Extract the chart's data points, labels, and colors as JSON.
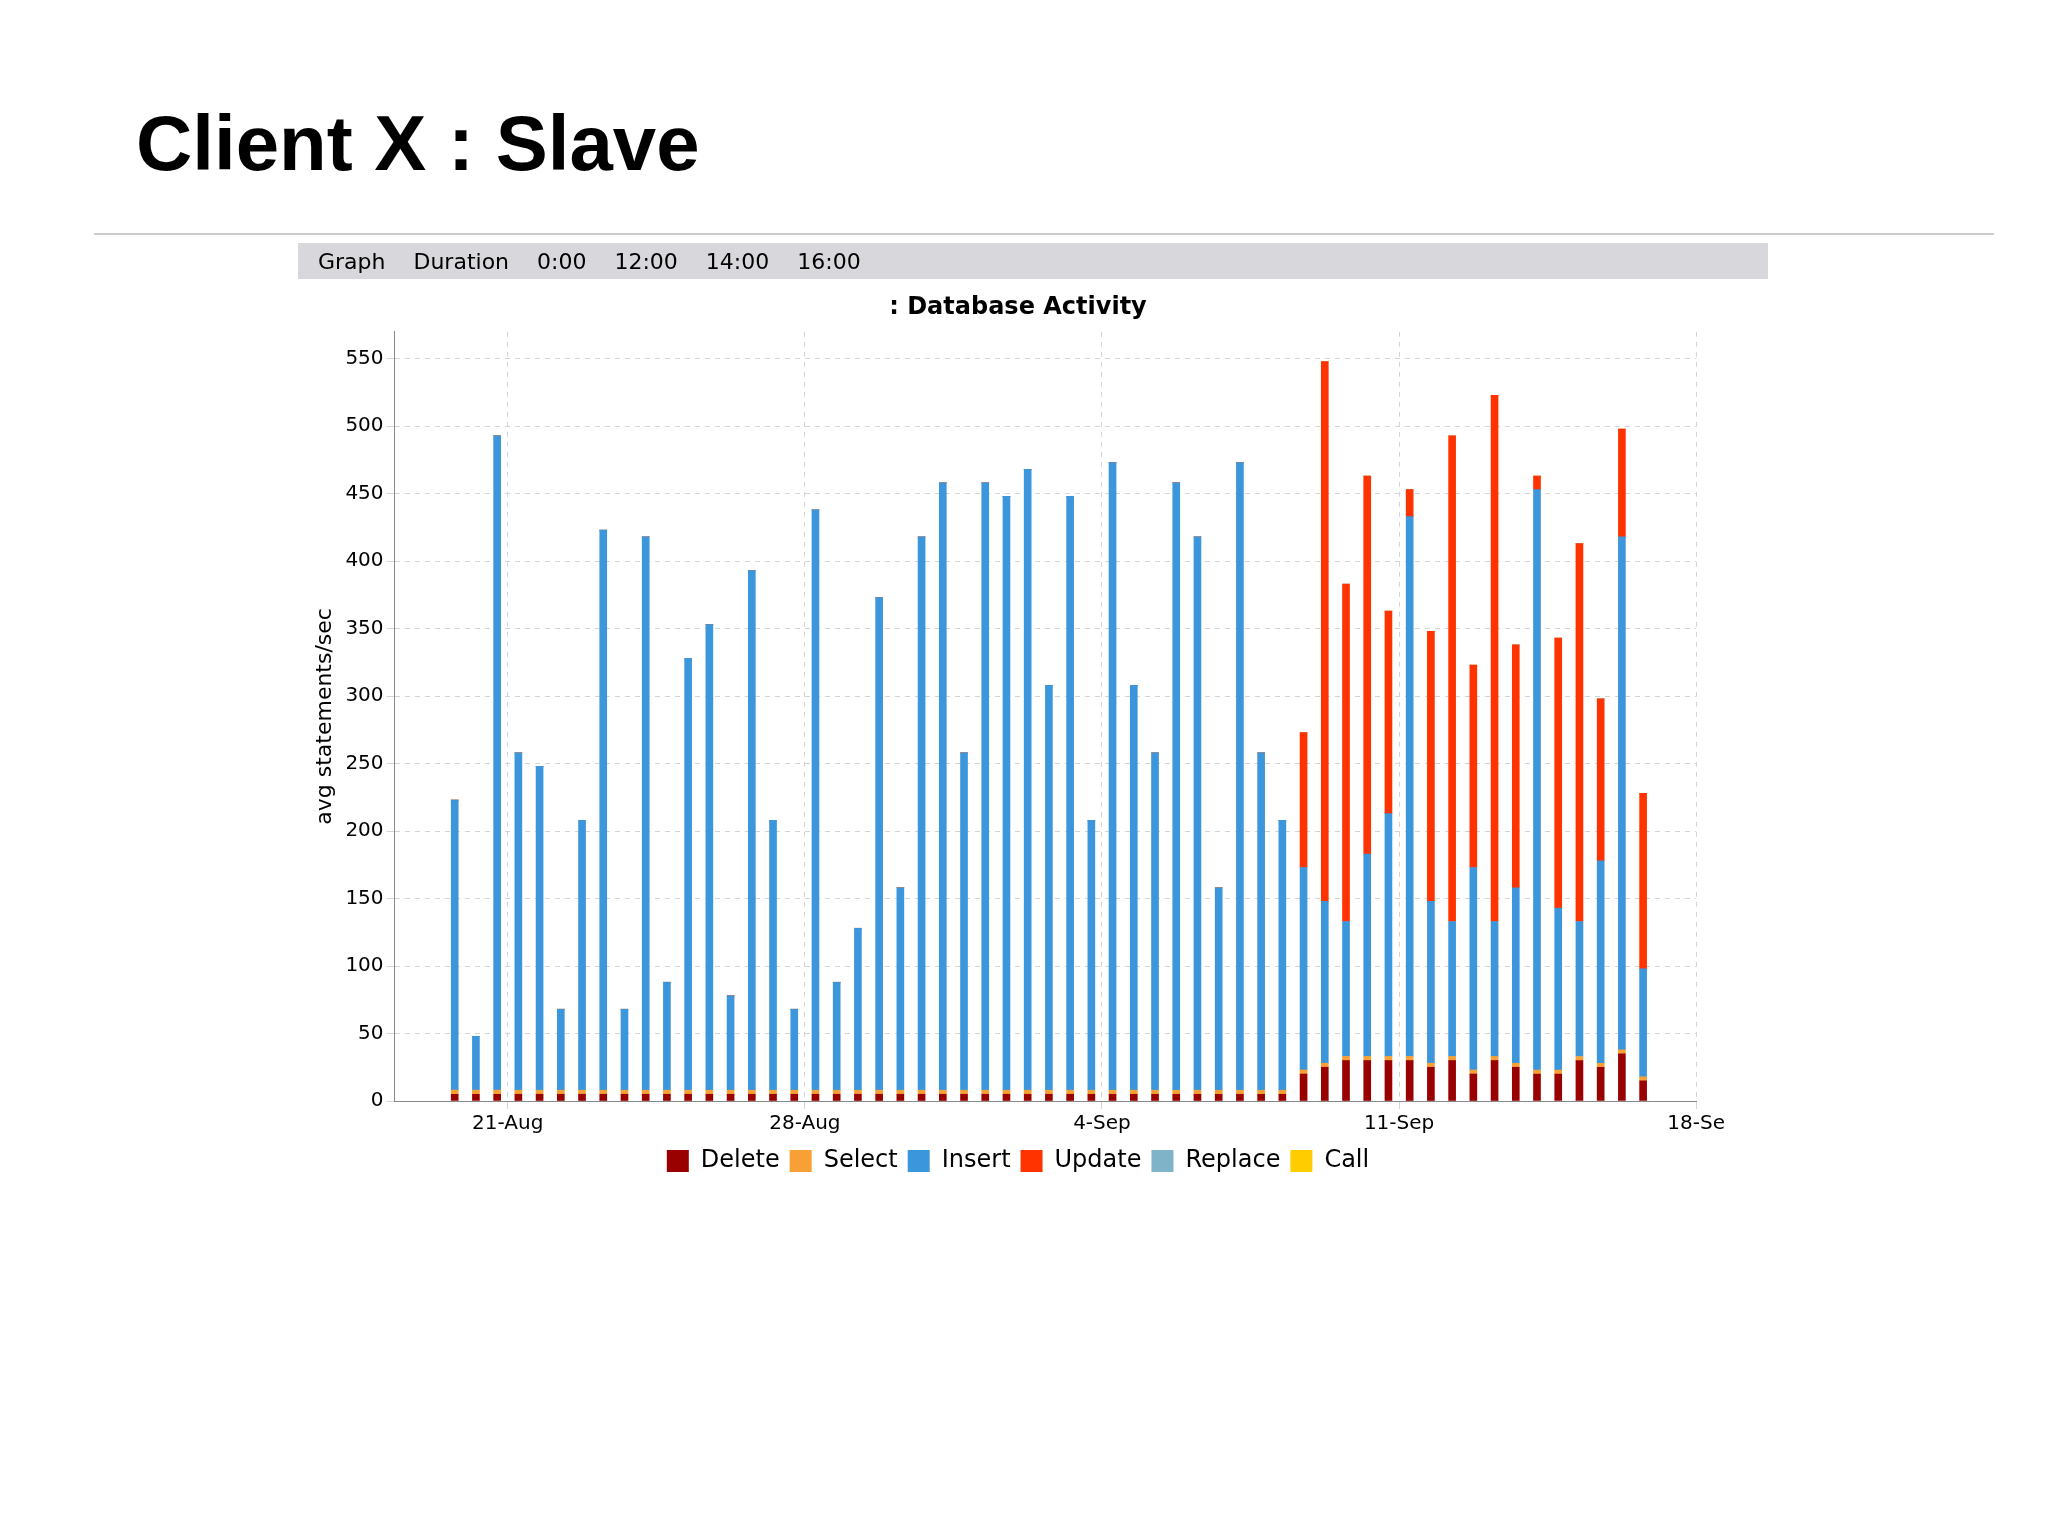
{
  "chart_data": {
    "type": "bar",
    "title": "Client X : Slave",
    "subtitle": ": Database Activity",
    "ylabel": "avg statements/sec",
    "annotations": [
      "Graph",
      "Duration",
      "0:00",
      "12:00",
      "14:00",
      "16:00"
    ],
    "stacked": true,
    "grid": true,
    "legend": "bottom",
    "xlim": [
      "--08-18T08:00",
      "--09-18"
    ],
    "xticks": [
      {
        "value": "--08-21",
        "label": "21-Aug"
      },
      {
        "value": "--08-28",
        "label": "28-Aug"
      },
      {
        "value": "--09-04",
        "label": "4-Sep"
      },
      {
        "value": "--09-11",
        "label": "11-Sep"
      },
      {
        "value": "--09-18",
        "label": "18-Se"
      }
    ],
    "ylim": [
      0,
      570
    ],
    "yticks": [
      0,
      50,
      100,
      150,
      200,
      250,
      300,
      350,
      400,
      450,
      500,
      550
    ],
    "x": [
      "--08-19T18:00",
      "--08-20T06:00",
      "--08-20T18:00",
      "--08-21T06:00",
      "--08-21T18:00",
      "--08-22T06:00",
      "--08-22T18:00",
      "--08-23T06:00",
      "--08-23T18:00",
      "--08-24T06:00",
      "--08-24T18:00",
      "--08-25T06:00",
      "--08-25T18:00",
      "--08-26T06:00",
      "--08-26T18:00",
      "--08-27T06:00",
      "--08-27T18:00",
      "--08-28T06:00",
      "--08-28T18:00",
      "--08-29T06:00",
      "--08-29T18:00",
      "--08-30T06:00",
      "--08-30T18:00",
      "--08-31T06:00",
      "--08-31T18:00",
      "--09-01T06:00",
      "--09-01T18:00",
      "--09-02T06:00",
      "--09-02T18:00",
      "--09-03T06:00",
      "--09-03T18:00",
      "--09-04T06:00",
      "--09-04T18:00",
      "--09-05T06:00",
      "--09-05T18:00",
      "--09-06T06:00",
      "--09-06T18:00",
      "--09-07T06:00",
      "--09-07T18:00",
      "--09-08T06:00",
      "--09-08T18:00",
      "--09-09T06:00",
      "--09-09T18:00",
      "--09-10T06:00",
      "--09-10T18:00",
      "--09-11T06:00",
      "--09-11T18:00",
      "--09-12T06:00",
      "--09-12T18:00",
      "--09-13T06:00",
      "--09-13T18:00",
      "--09-14T06:00",
      "--09-14T18:00",
      "--09-15T06:00",
      "--09-15T18:00",
      "--09-16T06:00",
      "--09-16T18:00"
    ],
    "series": [
      {
        "name": "Delete",
        "color": "#990000",
        "values": [
          5,
          5,
          5,
          5,
          5,
          5,
          5,
          5,
          5,
          5,
          5,
          5,
          5,
          5,
          5,
          5,
          5,
          5,
          5,
          5,
          5,
          5,
          5,
          5,
          5,
          5,
          5,
          5,
          5,
          5,
          5,
          5,
          5,
          5,
          5,
          5,
          5,
          5,
          5,
          5,
          20,
          25,
          30,
          30,
          30,
          30,
          25,
          30,
          20,
          30,
          25,
          20,
          20,
          30,
          25,
          35,
          15
        ]
      },
      {
        "name": "Select",
        "color": "#f7a035",
        "values": [
          3,
          3,
          3,
          3,
          3,
          3,
          3,
          3,
          3,
          3,
          3,
          3,
          3,
          3,
          3,
          3,
          3,
          3,
          3,
          3,
          3,
          3,
          3,
          3,
          3,
          3,
          3,
          3,
          3,
          3,
          3,
          3,
          3,
          3,
          3,
          3,
          3,
          3,
          3,
          3,
          3,
          3,
          3,
          3,
          3,
          3,
          3,
          3,
          3,
          3,
          3,
          3,
          3,
          3,
          3,
          3,
          3
        ]
      },
      {
        "name": "Insert",
        "color": "#3c96dc",
        "values": [
          215,
          40,
          485,
          250,
          240,
          60,
          200,
          415,
          60,
          410,
          80,
          320,
          345,
          70,
          385,
          200,
          60,
          430,
          80,
          120,
          365,
          150,
          410,
          450,
          250,
          450,
          440,
          460,
          300,
          440,
          200,
          465,
          300,
          250,
          450,
          410,
          150,
          465,
          250,
          200,
          150,
          120,
          100,
          150,
          180,
          400,
          120,
          100,
          150,
          100,
          130,
          430,
          120,
          100,
          150,
          380,
          80
        ]
      },
      {
        "name": "Update",
        "color": "#ff3300",
        "values": [
          0,
          0,
          0,
          0,
          0,
          0,
          0,
          0,
          0,
          0,
          0,
          0,
          0,
          0,
          0,
          0,
          0,
          0,
          0,
          0,
          0,
          0,
          0,
          0,
          0,
          0,
          0,
          0,
          0,
          0,
          0,
          0,
          0,
          0,
          0,
          0,
          0,
          0,
          0,
          0,
          100,
          400,
          250,
          280,
          150,
          20,
          200,
          360,
          150,
          390,
          180,
          10,
          200,
          280,
          120,
          80,
          130
        ]
      },
      {
        "name": "Replace",
        "color": "#7fb3c8",
        "values": [
          0,
          0,
          0,
          0,
          0,
          0,
          0,
          0,
          0,
          0,
          0,
          0,
          0,
          0,
          0,
          0,
          0,
          0,
          0,
          0,
          0,
          0,
          0,
          0,
          0,
          0,
          0,
          0,
          0,
          0,
          0,
          0,
          0,
          0,
          0,
          0,
          0,
          0,
          0,
          0,
          0,
          0,
          0,
          0,
          0,
          0,
          0,
          0,
          0,
          0,
          0,
          0,
          0,
          0,
          0,
          0,
          0
        ]
      },
      {
        "name": "Call",
        "color": "#ffcc00",
        "values": [
          0,
          0,
          0,
          0,
          0,
          0,
          0,
          0,
          0,
          0,
          0,
          0,
          0,
          0,
          0,
          0,
          0,
          0,
          0,
          0,
          0,
          0,
          0,
          0,
          0,
          0,
          0,
          0,
          0,
          0,
          0,
          0,
          0,
          0,
          0,
          0,
          0,
          0,
          0,
          0,
          0,
          0,
          0,
          0,
          0,
          0,
          0,
          0,
          0,
          0,
          0,
          0,
          0,
          0,
          0,
          0,
          0
        ]
      }
    ]
  }
}
